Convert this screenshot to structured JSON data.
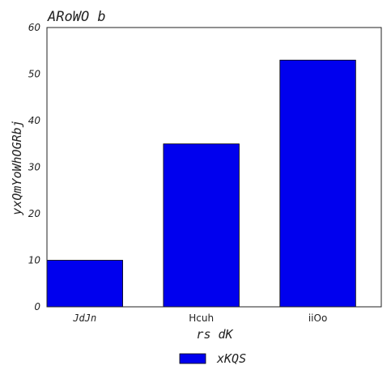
{
  "chart_data": {
    "type": "bar",
    "title": "ARoWO b",
    "xlabel": "rs dK",
    "ylabel": "yxQmYoWhOGRbj",
    "categories": [
      "JdJn",
      "Hcuh",
      "iiOo"
    ],
    "series": [
      {
        "name": "xKQS",
        "values": [
          10,
          35,
          53
        ],
        "color": "#0000ee"
      }
    ],
    "ylim": [
      0,
      60
    ],
    "yticks": [
      0,
      10,
      20,
      30,
      40,
      50,
      60
    ],
    "grid": false,
    "legend_position": "bottom-center"
  }
}
